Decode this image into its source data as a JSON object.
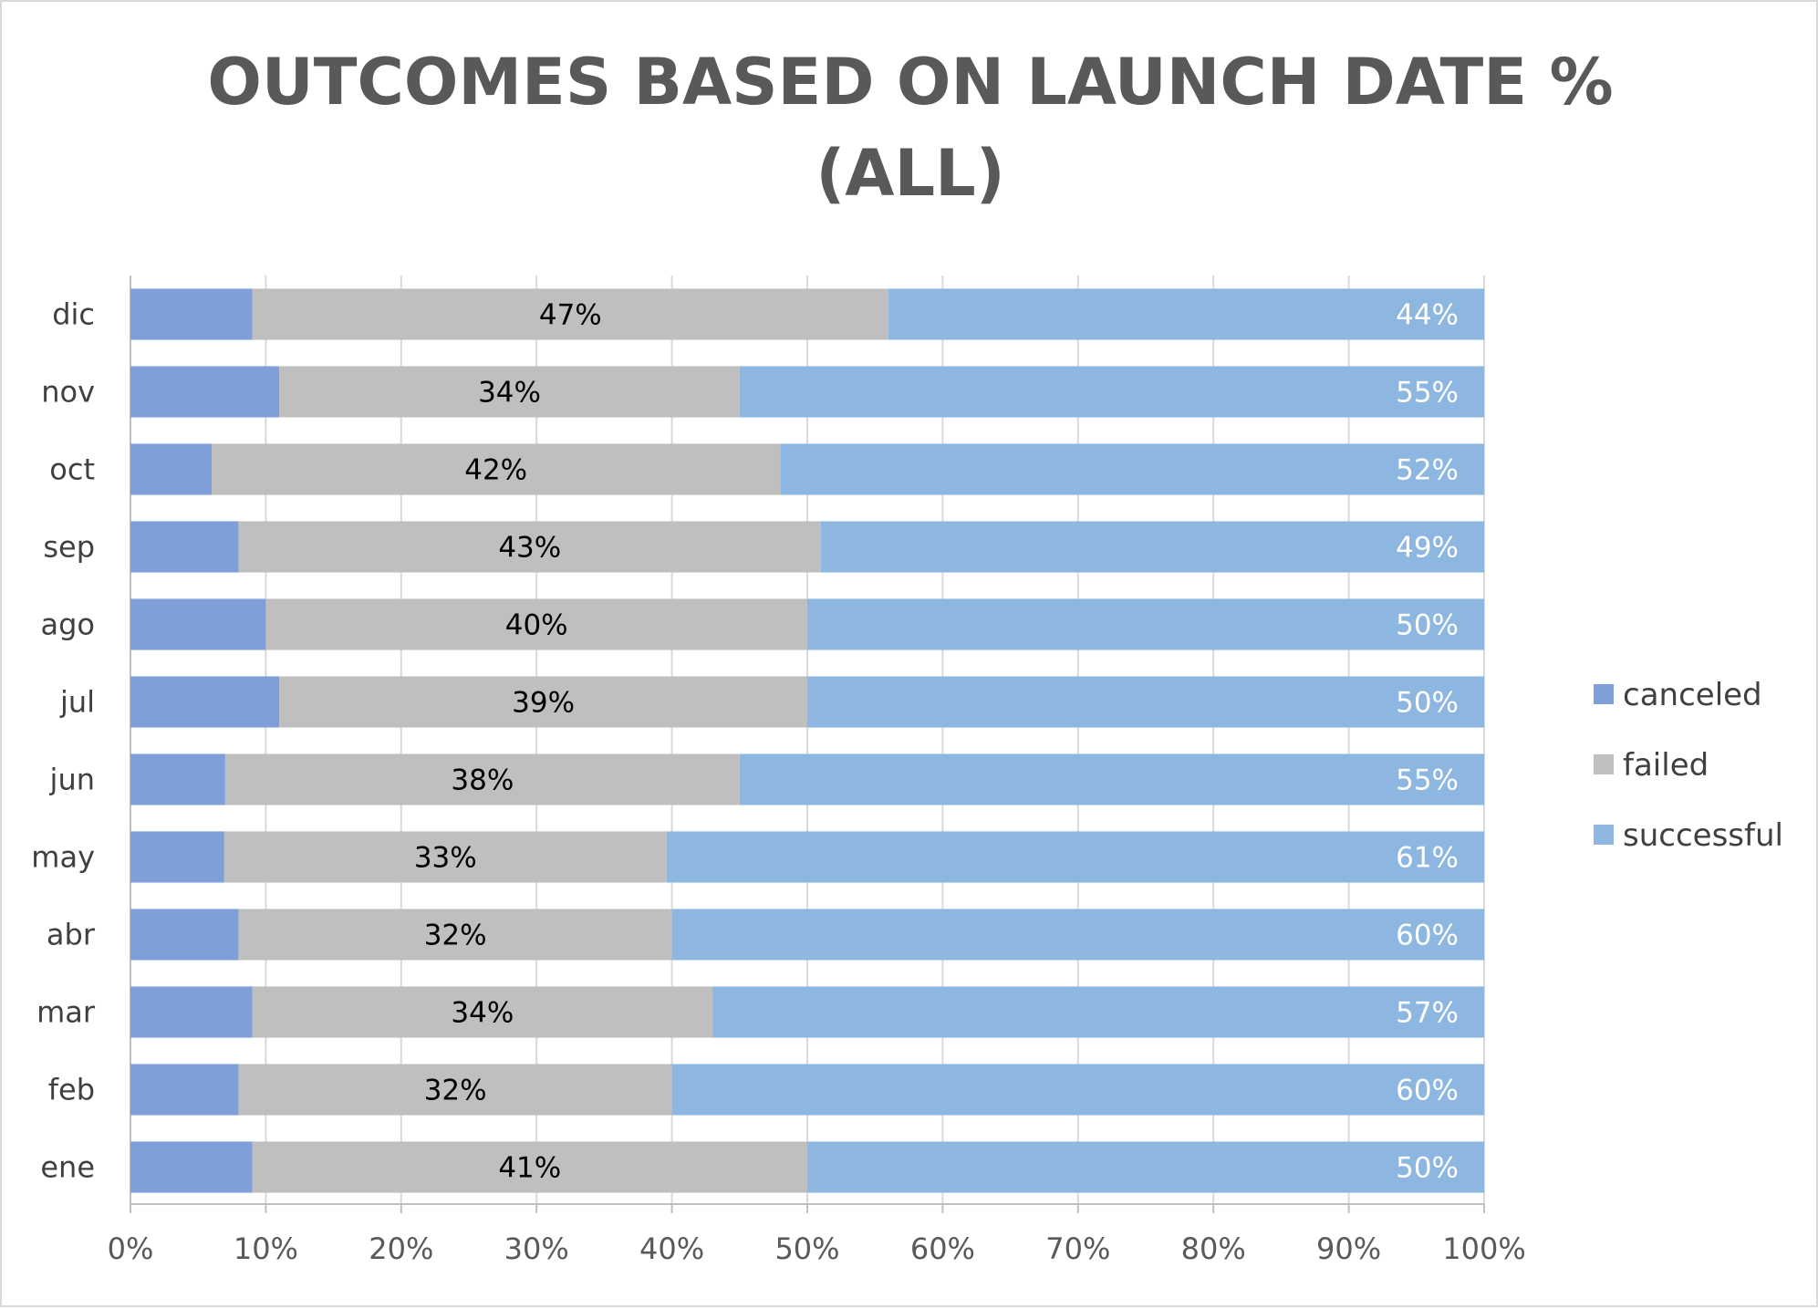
{
  "chart_data": {
    "type": "bar",
    "orientation": "horizontal",
    "stacked": "percent",
    "title_line1": "OUTCOMES BASED ON LAUNCH DATE %",
    "title_line2": "(ALL)",
    "categories": [
      "dic",
      "nov",
      "oct",
      "sep",
      "ago",
      "jul",
      "jun",
      "may",
      "abr",
      "mar",
      "feb",
      "ene"
    ],
    "series": [
      {
        "name": "canceled",
        "color": "#7f9fd9",
        "values": [
          9,
          11,
          6,
          8,
          10,
          11,
          7,
          7,
          8,
          9,
          8,
          9
        ],
        "labels": [
          "",
          "",
          "",
          "",
          "",
          "",
          "",
          "",
          "",
          "",
          "",
          ""
        ]
      },
      {
        "name": "failed",
        "color": "#bfbfbf",
        "values": [
          47,
          34,
          42,
          43,
          40,
          39,
          38,
          33,
          32,
          34,
          32,
          41
        ],
        "labels": [
          "47%",
          "34%",
          "42%",
          "43%",
          "40%",
          "39%",
          "38%",
          "33%",
          "32%",
          "34%",
          "32%",
          "41%"
        ]
      },
      {
        "name": "successful",
        "color": "#8db7e1",
        "values": [
          44,
          55,
          52,
          49,
          50,
          50,
          55,
          61,
          60,
          57,
          60,
          50
        ],
        "labels": [
          "44%",
          "55%",
          "52%",
          "49%",
          "50%",
          "50%",
          "55%",
          "61%",
          "60%",
          "57%",
          "60%",
          "50%"
        ]
      }
    ],
    "xlim": [
      0,
      100
    ],
    "xticks": [
      "0%",
      "10%",
      "20%",
      "30%",
      "40%",
      "50%",
      "60%",
      "70%",
      "80%",
      "90%",
      "100%"
    ],
    "grid": "vertical",
    "legend": "right"
  }
}
